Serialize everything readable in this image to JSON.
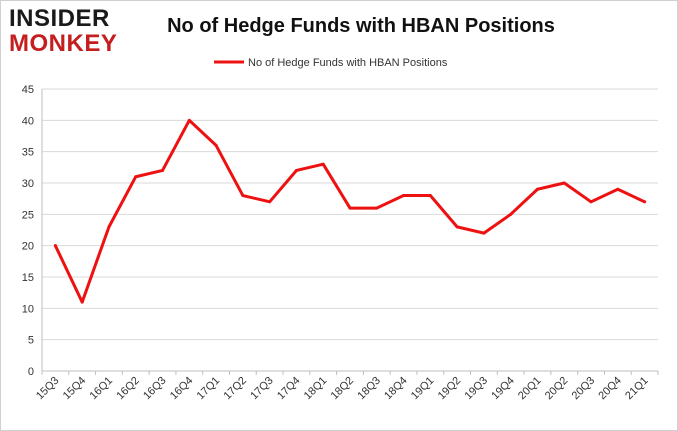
{
  "logo": {
    "line1": "INSIDER",
    "line2": "MONKEY"
  },
  "chart_data": {
    "type": "line",
    "title": "No of Hedge Funds with HBAN Positions",
    "xlabel": "",
    "ylabel": "",
    "categories": [
      "15Q3",
      "15Q4",
      "16Q1",
      "16Q2",
      "16Q3",
      "16Q4",
      "17Q1",
      "17Q2",
      "17Q3",
      "17Q4",
      "18Q1",
      "18Q2",
      "18Q3",
      "18Q4",
      "19Q1",
      "19Q2",
      "19Q3",
      "19Q4",
      "20Q1",
      "20Q2",
      "20Q3",
      "20Q4",
      "21Q1"
    ],
    "series": [
      {
        "name": "No of Hedge Funds with HBAN Positions",
        "values": [
          20,
          11,
          23,
          31,
          32,
          40,
          36,
          28,
          27,
          32,
          33,
          26,
          26,
          28,
          28,
          23,
          22,
          25,
          29,
          30,
          27,
          29,
          27
        ],
        "color": "#ee1111"
      }
    ],
    "ylim": [
      0,
      45
    ],
    "yticks": [
      0,
      5,
      10,
      15,
      20,
      25,
      30,
      35,
      40,
      45
    ],
    "grid": true,
    "legend_position": "top-center"
  }
}
